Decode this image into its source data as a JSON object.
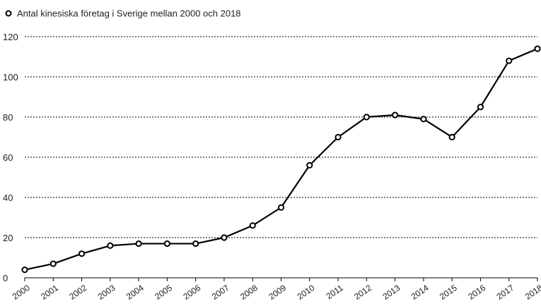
{
  "chart_data": {
    "type": "line",
    "legend": {
      "label": "Antal kinesiska företag i Sverige mellan 2000 och 2018",
      "placement": "top-left"
    },
    "x": [
      "2000",
      "2001",
      "2002",
      "2003",
      "2004",
      "2005",
      "2006",
      "2007",
      "2008",
      "2009",
      "2010",
      "2011",
      "2012",
      "2013",
      "2014",
      "2015",
      "2016",
      "2017",
      "2018"
    ],
    "series": [
      {
        "name": "Antal kinesiska företag i Sverige mellan 2000 och 2018",
        "values": [
          4,
          7,
          12,
          16,
          17,
          17,
          17,
          20,
          26,
          35,
          56,
          70,
          80,
          81,
          79,
          70,
          85,
          108,
          114
        ]
      }
    ],
    "ylim": [
      0,
      120
    ],
    "yticks": [
      0,
      20,
      40,
      60,
      80,
      100,
      120
    ],
    "grid": "horizontal-dotted",
    "line_color": "#000000",
    "marker_fill": "#ffffff"
  }
}
